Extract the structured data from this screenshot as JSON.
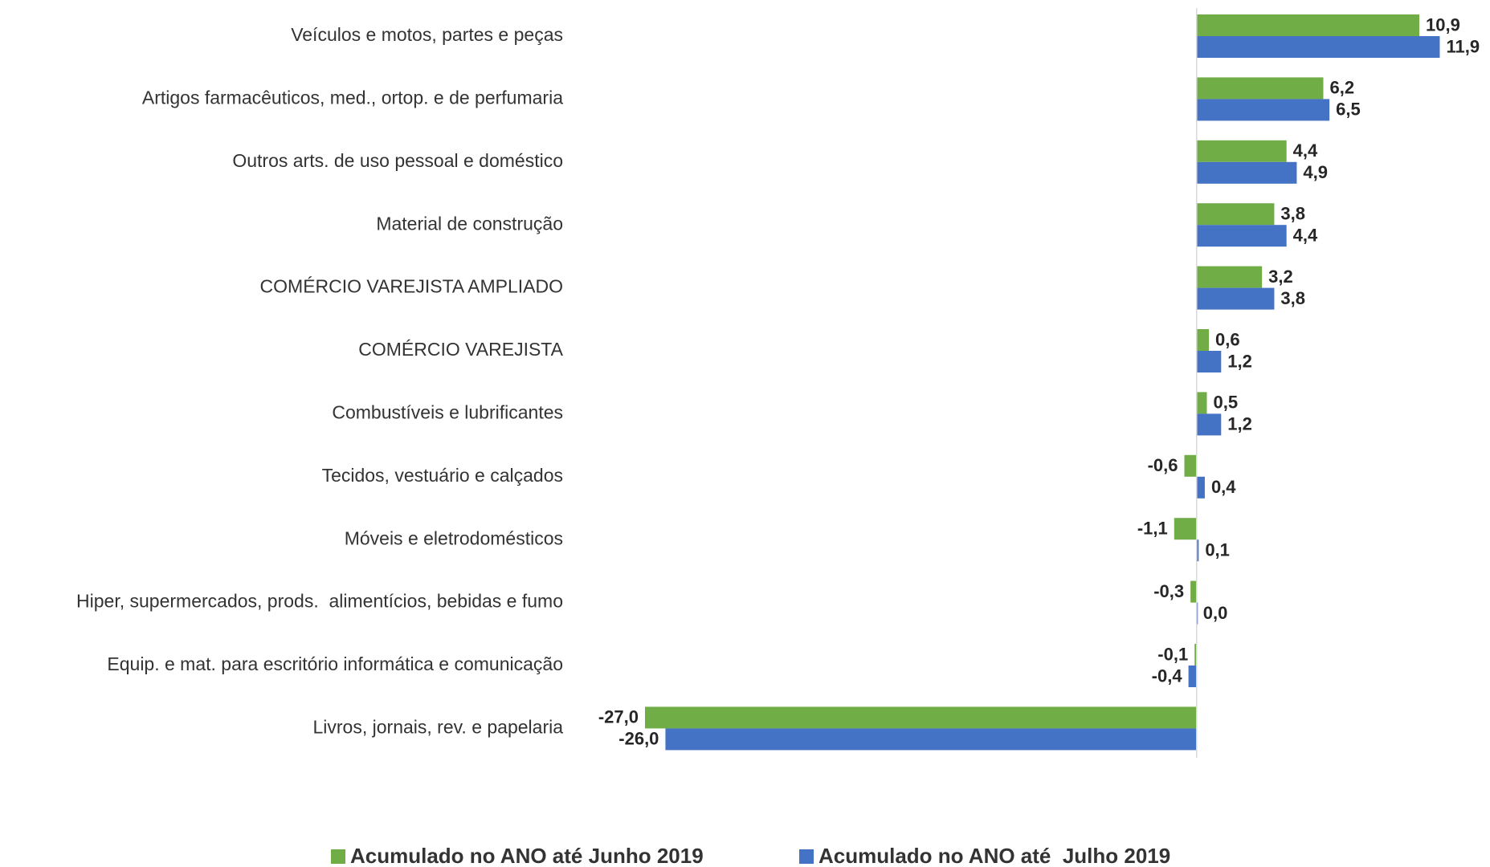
{
  "chart_data": {
    "type": "bar",
    "orientation": "horizontal",
    "categories": [
      "Veículos e motos, partes e peças",
      "Artigos farmacêuticos, med., ortop. e de perfumaria",
      "Outros arts. de uso pessoal e doméstico",
      "Material de construção",
      "COMÉRCIO VAREJISTA AMPLIADO",
      "COMÉRCIO VAREJISTA",
      "Combustíveis e lubrificantes",
      "Tecidos, vestuário e calçados",
      "Móveis e eletrodomésticos",
      "Hiper, supermercados, prods.  alimentícios, bebidas e fumo",
      "Equip. e mat. para escritório informática e comunicação",
      "Livros, jornais, rev. e papelaria"
    ],
    "series": [
      {
        "name": "Acumulado no ANO até Junho 2019",
        "color": "#70ad47",
        "values": [
          10.9,
          6.2,
          4.4,
          3.8,
          3.2,
          0.6,
          0.5,
          -0.6,
          -1.1,
          -0.3,
          -0.1,
          -27.0
        ],
        "value_labels": [
          "10,9",
          "6,2",
          "4,4",
          "3,8",
          "3,2",
          "0,6",
          "0,5",
          "-0,6",
          "-1,1",
          "-0,3",
          "-0,1",
          "-27,0"
        ]
      },
      {
        "name": "Acumulado no ANO até  Julho 2019",
        "color": "#4472c4",
        "values": [
          11.9,
          6.5,
          4.9,
          4.4,
          3.8,
          1.2,
          1.2,
          0.4,
          0.1,
          0.0,
          -0.4,
          -26.0
        ],
        "value_labels": [
          "11,9",
          "6,5",
          "4,9",
          "4,4",
          "3,8",
          "1,2",
          "1,2",
          "0,4",
          "0,1",
          "0,0",
          "-0,4",
          "-26,0"
        ]
      }
    ],
    "xlim": [
      -27,
      12
    ],
    "legend": "bottom"
  }
}
